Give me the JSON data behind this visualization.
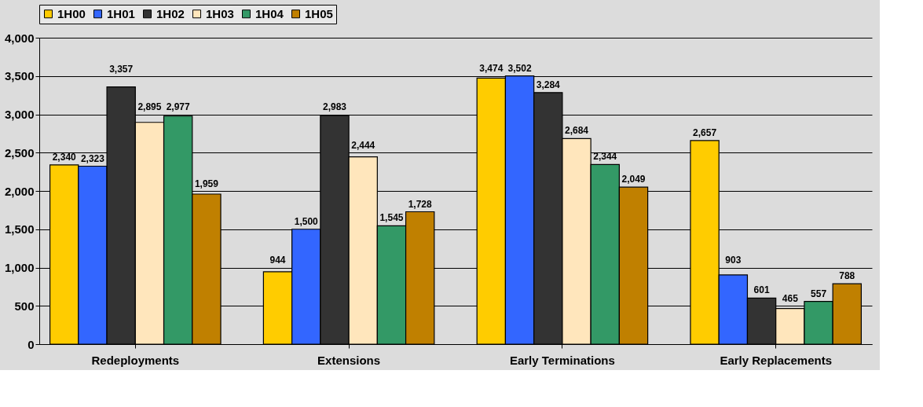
{
  "chart_data": {
    "type": "bar",
    "categories": [
      "Redeployments",
      "Extensions",
      "Early Terminations",
      "Early Replacements"
    ],
    "series": [
      {
        "name": "1H00",
        "color": "#ffcc00",
        "values": [
          2340,
          944,
          3474,
          2657
        ],
        "value_labels": [
          "2,340",
          "944",
          "3,474",
          "2,657"
        ]
      },
      {
        "name": "1H01",
        "color": "#3366ff",
        "values": [
          2323,
          1500,
          3502,
          903
        ],
        "value_labels": [
          "2,323",
          "1,500",
          "3,502",
          "903"
        ]
      },
      {
        "name": "1H02",
        "color": "#333333",
        "values": [
          3357,
          2983,
          3284,
          601
        ],
        "value_labels": [
          "3,357",
          "2,983",
          "3,284",
          "601"
        ]
      },
      {
        "name": "1H03",
        "color": "#ffe6bc",
        "values": [
          2895,
          2444,
          2684,
          465
        ],
        "value_labels": [
          "2,895",
          "2,444",
          "2,684",
          "465"
        ]
      },
      {
        "name": "1H04",
        "color": "#339966",
        "values": [
          2977,
          1545,
          2344,
          557
        ],
        "value_labels": [
          "2,977",
          "1,545",
          "2,344",
          "557"
        ]
      },
      {
        "name": "1H05",
        "color": "#c08000",
        "values": [
          1959,
          1728,
          2049,
          788
        ],
        "value_labels": [
          "1,959",
          "1,728",
          "2,049",
          "788"
        ]
      }
    ],
    "ylim": [
      0,
      4000
    ],
    "yticks": [
      0,
      {
        "value": 500,
        "label": "500"
      },
      {
        "value": 1000,
        "label": "1,000"
      },
      {
        "value": 1500,
        "label": "1,500"
      },
      {
        "value": 2000,
        "label": "2,000"
      },
      {
        "value": 2500,
        "label": "2,500"
      },
      {
        "value": 3000,
        "label": "3,000"
      },
      {
        "value": 3500,
        "label": "3,500"
      },
      {
        "value": 4000,
        "label": "4,000"
      }
    ],
    "grid": "y",
    "legend": "top"
  }
}
